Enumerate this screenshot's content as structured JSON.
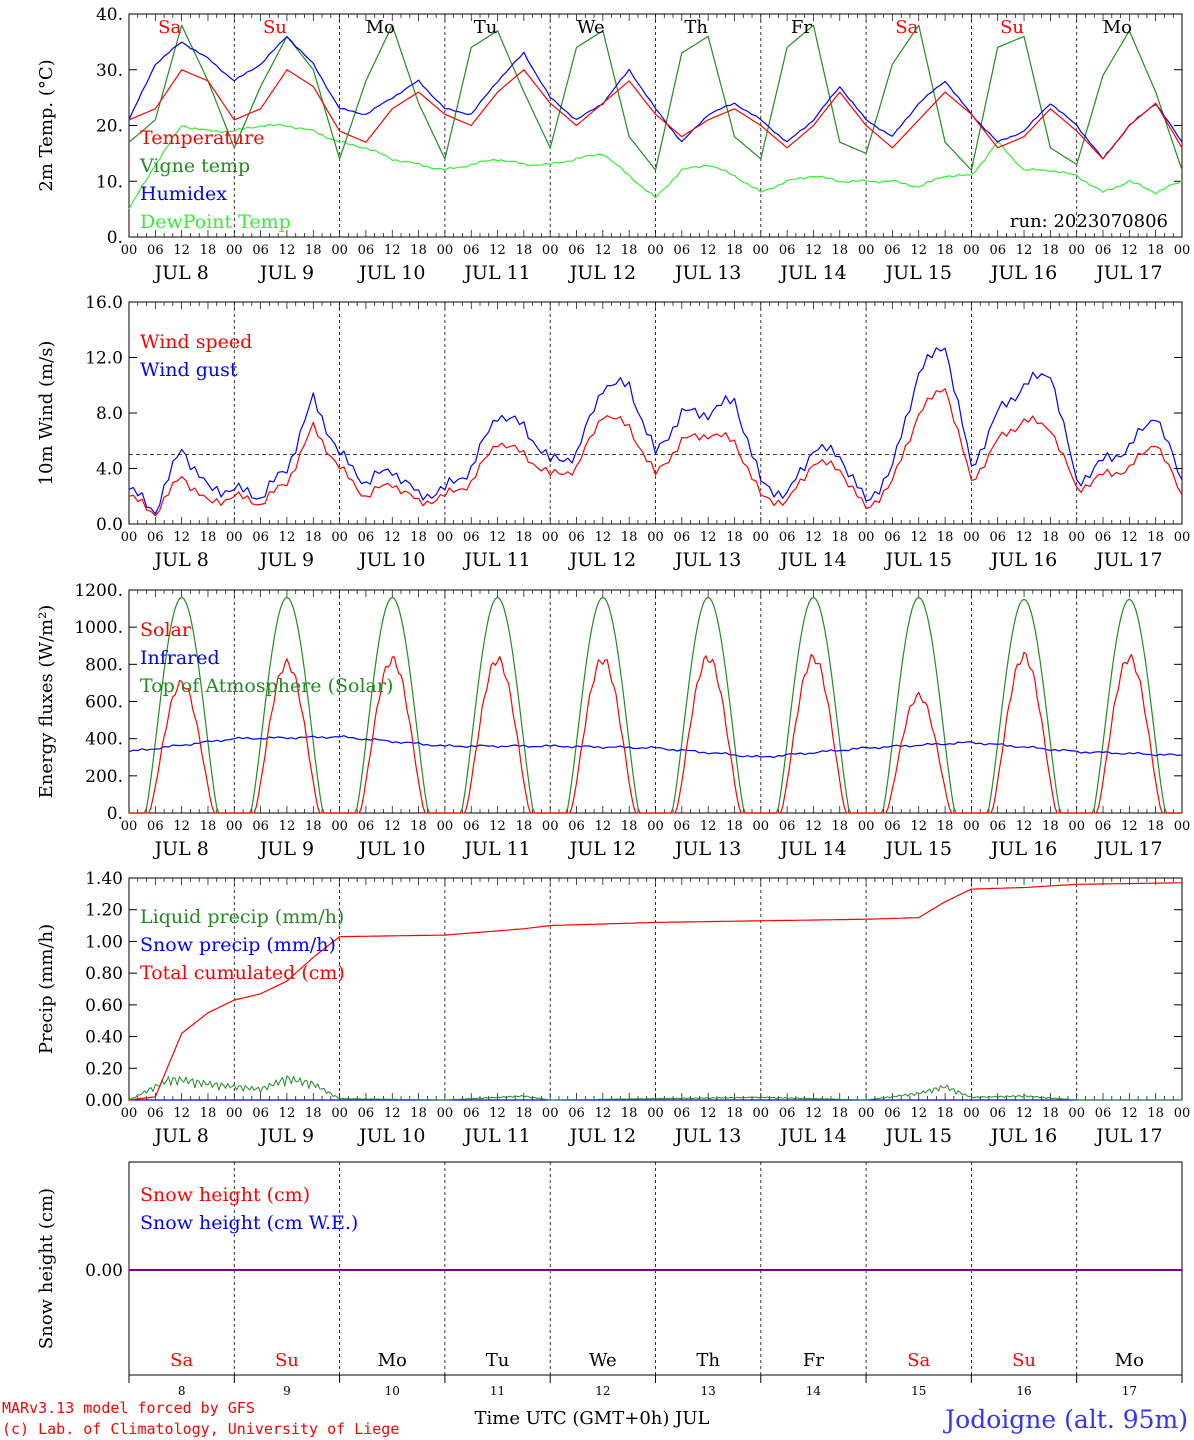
{
  "colors": {
    "red": "#ff0000",
    "green": "#228b22",
    "blue": "#0000ff",
    "lime": "#33ee33",
    "purple": "#800080",
    "black": "#000000",
    "title_blue": "#3333ff"
  },
  "days": {
    "names": [
      "Sa",
      "Su",
      "Mo",
      "Tu",
      "We",
      "Th",
      "Fr",
      "Sa",
      "Su",
      "Mo"
    ],
    "weekend": [
      true,
      true,
      false,
      false,
      false,
      false,
      false,
      true,
      true,
      false
    ],
    "dates": [
      "JUL  8",
      "JUL  9",
      "JUL 10",
      "JUL 11",
      "JUL 12",
      "JUL 13",
      "JUL 14",
      "JUL 15",
      "JUL 16",
      "JUL 17"
    ],
    "numbers": [
      "8",
      "9",
      "10",
      "11",
      "12",
      "13",
      "14",
      "15",
      "16",
      "17"
    ],
    "hour_labels": [
      "00",
      "06",
      "12",
      "18"
    ],
    "end_hour_label": "00"
  },
  "footer": {
    "model": "MARv3.13 model forced by GFS",
    "credit": "(c) Lab. of Climatology, University of Liege",
    "xlabel": "Time UTC (GMT+0h) JUL",
    "location": "Jodoigne (alt. 95m)"
  },
  "chart_data": [
    {
      "type": "line",
      "ylabel": "2m Temp. (°C)",
      "ylim": [
        0,
        40
      ],
      "yticks": [
        "0.",
        "10.",
        "20.",
        "30.",
        "40."
      ],
      "annotation": "run: 2023070806",
      "series": [
        {
          "name": "Temperature",
          "color": "red",
          "x": [
            0,
            6,
            12,
            18,
            24,
            30,
            36,
            42,
            48,
            54,
            60,
            66,
            72,
            78,
            84,
            90,
            96,
            102,
            108,
            114,
            120,
            126,
            132,
            138,
            144,
            150,
            156,
            162,
            168,
            174,
            180,
            186,
            192,
            198,
            204,
            210,
            216,
            222,
            228,
            234,
            240
          ],
          "values": [
            21,
            23,
            30,
            28,
            21,
            23,
            30,
            27,
            19,
            17,
            23,
            26,
            22,
            20,
            26,
            30,
            24,
            20,
            24,
            28,
            22,
            18,
            21,
            23,
            20,
            16,
            20,
            26,
            20,
            16,
            21,
            26,
            22,
            16,
            18,
            23,
            19,
            14,
            20,
            24,
            16
          ]
        },
        {
          "name": "Vigne temp",
          "color": "green",
          "x": [
            0,
            6,
            12,
            18,
            24,
            30,
            36,
            42,
            48,
            54,
            60,
            66,
            72,
            78,
            84,
            90,
            96,
            102,
            108,
            114,
            120,
            126,
            132,
            138,
            144,
            150,
            156,
            162,
            168,
            174,
            180,
            186,
            192,
            198,
            204,
            210,
            216,
            222,
            228,
            234,
            240
          ],
          "values": [
            17,
            21,
            38,
            28,
            16,
            27,
            36,
            30,
            14,
            28,
            38,
            24,
            14,
            34,
            37,
            26,
            16,
            34,
            37,
            18,
            12,
            33,
            36,
            18,
            14,
            34,
            38,
            17,
            15,
            31,
            38,
            17,
            12,
            34,
            36,
            16,
            13,
            29,
            37,
            26,
            12
          ]
        },
        {
          "name": "Humidex",
          "color": "blue",
          "x": [
            0,
            6,
            12,
            18,
            24,
            30,
            36,
            42,
            48,
            54,
            60,
            66,
            72,
            78,
            84,
            90,
            96,
            102,
            108,
            114,
            120,
            126,
            132,
            138,
            144,
            150,
            156,
            162,
            168,
            174,
            180,
            186,
            192,
            198,
            204,
            210,
            216,
            222,
            228,
            234,
            240
          ],
          "values": [
            21,
            31,
            35,
            32,
            28,
            31,
            36,
            31,
            23,
            22,
            25,
            28,
            23,
            22,
            28,
            33,
            25,
            21,
            24,
            30,
            23,
            17,
            22,
            24,
            21,
            17,
            21,
            27,
            21,
            18,
            24,
            28,
            22,
            17,
            19,
            24,
            20,
            14,
            20,
            24,
            17
          ]
        },
        {
          "name": "DewPoint Temp",
          "color": "lime",
          "x": [
            0,
            6,
            12,
            18,
            24,
            30,
            36,
            42,
            48,
            54,
            60,
            66,
            72,
            78,
            84,
            90,
            96,
            102,
            108,
            114,
            120,
            126,
            132,
            138,
            144,
            150,
            156,
            162,
            168,
            174,
            180,
            186,
            192,
            198,
            204,
            210,
            216,
            222,
            228,
            234,
            240
          ],
          "values": [
            5,
            13,
            20,
            19,
            19,
            20,
            20,
            19,
            17,
            16,
            14,
            13,
            12,
            13,
            14,
            13,
            13,
            14,
            15,
            11,
            7,
            12,
            13,
            11,
            8,
            10,
            11,
            10,
            10,
            10,
            9,
            11,
            11,
            17,
            12,
            12,
            11,
            8,
            10,
            8,
            10
          ]
        }
      ]
    },
    {
      "type": "line",
      "ylabel": "10m Wind (m/s)",
      "ylim": [
        0,
        16
      ],
      "yticks": [
        "0.0",
        "4.0",
        "8.0",
        "12.0",
        "16.0"
      ],
      "reference_line": 5,
      "series": [
        {
          "name": "Wind speed",
          "color": "red",
          "x": [
            0,
            6,
            12,
            18,
            24,
            30,
            36,
            42,
            48,
            54,
            60,
            66,
            72,
            78,
            84,
            90,
            96,
            102,
            108,
            114,
            120,
            126,
            132,
            138,
            144,
            150,
            156,
            162,
            168,
            174,
            180,
            186,
            192,
            198,
            204,
            210,
            216,
            222,
            228,
            234,
            240
          ],
          "values": [
            2,
            0.8,
            3.5,
            1.5,
            2,
            1.5,
            3,
            7,
            4,
            2,
            3,
            1.5,
            2,
            3,
            6,
            5,
            3.5,
            4,
            8,
            7,
            3.5,
            6,
            6.5,
            6,
            2,
            1.5,
            4.5,
            4,
            1,
            3,
            8,
            10,
            3,
            6,
            7.5,
            7,
            2.5,
            3.5,
            4,
            6,
            2
          ]
        },
        {
          "name": "Wind gust",
          "color": "blue",
          "x": [
            0,
            6,
            12,
            18,
            24,
            30,
            36,
            42,
            48,
            54,
            60,
            66,
            72,
            78,
            84,
            90,
            96,
            102,
            108,
            114,
            120,
            126,
            132,
            138,
            144,
            150,
            156,
            162,
            168,
            174,
            180,
            186,
            192,
            198,
            204,
            210,
            216,
            222,
            228,
            234,
            240
          ],
          "values": [
            2.5,
            1,
            5.5,
            2.5,
            2.5,
            2,
            4,
            9,
            5,
            3,
            4,
            2,
            2.5,
            4,
            8,
            7,
            4.5,
            5,
            10,
            10,
            5,
            8,
            8,
            9,
            3,
            2,
            5.5,
            5,
            1.5,
            4,
            11,
            13,
            4,
            8,
            10,
            11,
            3,
            4.5,
            5.5,
            8,
            3
          ]
        }
      ]
    },
    {
      "type": "line",
      "ylabel": "Energy fluxes (W/m²)",
      "ylim": [
        0,
        1200
      ],
      "yticks": [
        "0.",
        "200.",
        "400.",
        "600.",
        "800.",
        "1000.",
        "1200."
      ],
      "series": [
        {
          "name": "Solar",
          "color": "red",
          "daily_peak": [
            720,
            830,
            850,
            850,
            850,
            860,
            860,
            650,
            870,
            860
          ]
        },
        {
          "name": "Infrared",
          "color": "blue",
          "x": [
            0,
            24,
            48,
            72,
            96,
            120,
            144,
            168,
            192,
            216,
            240
          ],
          "values": [
            330,
            400,
            410,
            360,
            360,
            350,
            300,
            350,
            380,
            330,
            310
          ]
        },
        {
          "name": "Top of Atmosphere (Solar)",
          "color": "green",
          "daily_peak": [
            1160,
            1160,
            1160,
            1160,
            1160,
            1160,
            1160,
            1160,
            1150,
            1150
          ]
        }
      ]
    },
    {
      "type": "line",
      "ylabel": "Precip (mm/h)",
      "ylim": [
        0,
        1.4
      ],
      "yticks": [
        "0.00",
        "0.20",
        "0.40",
        "0.60",
        "0.80",
        "1.00",
        "1.20",
        "1.40"
      ],
      "series": [
        {
          "name": "Liquid precip (mm/h)",
          "color": "green",
          "x": [
            0,
            6,
            9,
            12,
            18,
            24,
            30,
            36,
            42,
            48,
            72,
            90,
            96,
            120,
            144,
            168,
            180,
            186,
            192,
            204,
            216,
            240
          ],
          "values": [
            0,
            0.1,
            0.15,
            0.15,
            0.12,
            0.1,
            0.08,
            0.16,
            0.12,
            0.01,
            0,
            0.03,
            0,
            0.01,
            0.02,
            0,
            0.05,
            0.1,
            0.02,
            0.03,
            0,
            0
          ]
        },
        {
          "name": "Snow precip (mm/h)",
          "color": "blue",
          "x": [
            0,
            240
          ],
          "values": [
            0,
            0
          ]
        },
        {
          "name": "Total cumulated (cm)",
          "color": "red",
          "x": [
            0,
            6,
            12,
            18,
            24,
            30,
            36,
            42,
            48,
            72,
            90,
            96,
            120,
            144,
            168,
            180,
            186,
            192,
            204,
            216,
            240
          ],
          "values": [
            0,
            0.02,
            0.42,
            0.55,
            0.63,
            0.67,
            0.75,
            0.9,
            1.03,
            1.04,
            1.08,
            1.1,
            1.12,
            1.13,
            1.14,
            1.15,
            1.25,
            1.33,
            1.34,
            1.36,
            1.37
          ]
        }
      ]
    },
    {
      "type": "line",
      "ylabel": "Snow height (cm)",
      "ytick": "0.00",
      "series": [
        {
          "name": "Snow height (cm)",
          "color": "red",
          "x": [
            0,
            240
          ],
          "values": [
            0,
            0
          ]
        },
        {
          "name": "Snow height (cm W.E.)",
          "color": "blue",
          "x": [
            0,
            240
          ],
          "values": [
            0,
            0
          ]
        }
      ]
    }
  ]
}
